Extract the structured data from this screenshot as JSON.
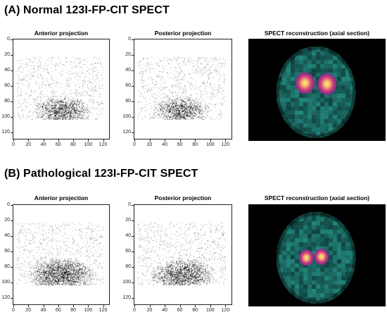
{
  "sections": [
    {
      "title": "(A) Normal 123I-FP-CIT SPECT",
      "panels": [
        "Anterior projection",
        "Posterior projection",
        "SPECT reconstruction (axial section)"
      ],
      "pathological": false
    },
    {
      "title": "(B) Pathological 123I-FP-CIT SPECT",
      "panels": [
        "Anterior projection",
        "Posterior projection",
        "SPECT reconstruction (axial section)"
      ],
      "pathological": true
    }
  ],
  "axes": {
    "y_ticks": [
      "0",
      "20",
      "40",
      "60",
      "80",
      "100",
      "120"
    ],
    "x_ticks": [
      "0",
      "20",
      "40",
      "60",
      "80",
      "100",
      "120"
    ],
    "range": [
      0,
      128
    ]
  },
  "colors": {
    "background": "#000000",
    "tissue": "#1f7a72",
    "uptake_low": "#7a2d8c",
    "uptake_mid": "#d6437a",
    "uptake_high": "#ffe070"
  }
}
